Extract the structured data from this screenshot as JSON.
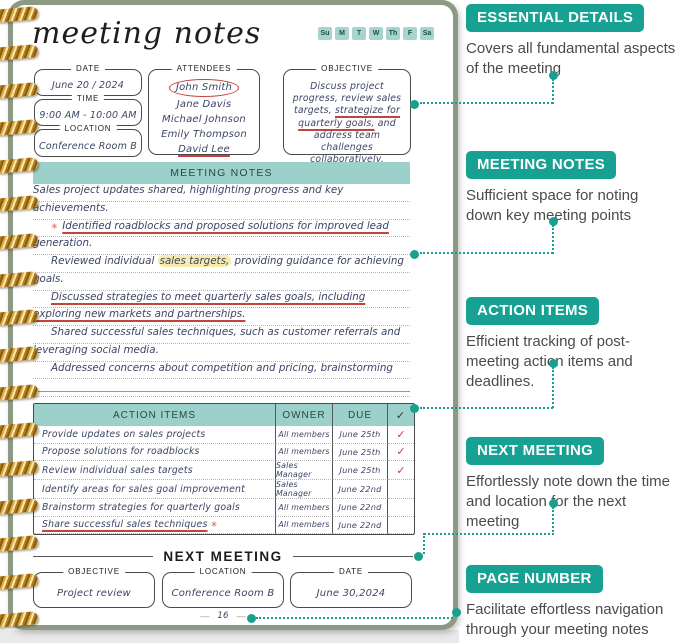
{
  "notebook": {
    "title": "meeting notes",
    "weekdays": [
      "Su",
      "M",
      "T",
      "W",
      "Th",
      "F",
      "Sa"
    ],
    "details": {
      "date_label": "DATE",
      "date_value": "June 20 / 2024",
      "time_label": "TIME",
      "time_value": "9:00 AM - 10:00 AM",
      "location_label": "LOCATION",
      "location_value": "Conference Room B",
      "attendees_label": "ATTENDEES",
      "attendees": [
        "John Smith",
        "Jane Davis",
        "Michael Johnson",
        "Emily Thompson",
        "David Lee"
      ],
      "objective_label": "OBJECTIVE",
      "objective": {
        "pre": "Discuss project progress, review sales targets, ",
        "underlined": "strategize for quarterly goals,",
        "post": " and address team challenges collaboratively."
      }
    },
    "notes": {
      "header": "MEETING NOTES",
      "lines": [
        {
          "segments": [
            {
              "t": "Sales project updates shared, highlighting progress and key"
            }
          ]
        },
        {
          "segments": [
            {
              "t": "achievements."
            }
          ]
        },
        {
          "indent": true,
          "segments": [
            {
              "t": "✳ ",
              "s": "mark"
            },
            {
              "t": "Identified roadblocks and proposed solutions for improved lead",
              "s": "red_u"
            }
          ]
        },
        {
          "segments": [
            {
              "t": "generation."
            }
          ]
        },
        {
          "indent": true,
          "segments": [
            {
              "t": "Reviewed individual "
            },
            {
              "t": "sales targets,",
              "s": "hl"
            },
            {
              "t": " providing guidance for achieving"
            }
          ]
        },
        {
          "segments": [
            {
              "t": "goals."
            }
          ]
        },
        {
          "indent": true,
          "segments": [
            {
              "t": "Discussed strategies to meet quarterly sales goals, including",
              "s": "red_u"
            }
          ]
        },
        {
          "segments": [
            {
              "t": "exploring new markets and partnerships.",
              "s": "red_u"
            }
          ]
        },
        {
          "indent": true,
          "segments": [
            {
              "t": "Shared successful sales techniques, such as customer referrals and"
            }
          ]
        },
        {
          "segments": [
            {
              "t": "leveraging social media."
            }
          ]
        },
        {
          "indent": true,
          "segments": [
            {
              "t": "Addressed concerns about competition and pricing, brainstorming"
            }
          ]
        },
        {
          "segments": [
            {
              "t": ""
            }
          ]
        }
      ]
    },
    "action_items": {
      "headers": [
        "ACTION ITEMS",
        "OWNER",
        "DUE",
        "✓"
      ],
      "rows": [
        {
          "item": "Provide updates on sales projects",
          "owner": "All members",
          "due": "June 25th",
          "check": "✓"
        },
        {
          "item": "Propose solutions for roadblocks",
          "owner": "All members",
          "due": "June 25th",
          "check": "✓"
        },
        {
          "item": "Review individual sales targets",
          "owner": "Sales Manager",
          "due": "June 25th",
          "check": "✓"
        },
        {
          "item": "Identify areas for sales goal improvement",
          "owner": "Sales Manager",
          "due": "June 22nd",
          "check": ""
        },
        {
          "item": "Brainstorm strategies for quarterly goals",
          "owner": "All members",
          "due": "June 22nd",
          "check": ""
        },
        {
          "item": "Share successful sales techniques",
          "owner": "All members",
          "due": "June 22nd",
          "check": "",
          "mark": "✳"
        }
      ]
    },
    "next_meeting": {
      "header": "NEXT MEETING",
      "objective_label": "OBJECTIVE",
      "objective_value": "Project review",
      "location_label": "LOCATION",
      "location_value": "Conference Room B",
      "date_label": "DATE",
      "date_value": "June 30,2024"
    },
    "page_number": "16"
  },
  "callouts": [
    {
      "label": "ESSENTIAL DETAILS",
      "description": "Covers all fundamental aspects of the meeting"
    },
    {
      "label": "MEETING NOTES",
      "description": "Sufficient space for noting down key meeting points"
    },
    {
      "label": "ACTION ITEMS",
      "description": "Efficient tracking of post-meeting action items and deadlines."
    },
    {
      "label": "NEXT MEETING",
      "description": "Effortlessly note down the time and location for the next meeting"
    },
    {
      "label": "PAGE NUMBER",
      "description": "Facilitate effortless navigation through your meeting notes"
    }
  ],
  "colors": {
    "accent_teal": "#17a192",
    "header_bar_teal": "#9bd1ca",
    "weekday_box_teal": "#a9d4cd",
    "ink_handwriting": "#3d4566",
    "red_pen": "#c2443d",
    "yellow_highlight": "#f6ecae",
    "cover_green": "#8c9a83",
    "spiral_gold": "#d9a93e"
  }
}
